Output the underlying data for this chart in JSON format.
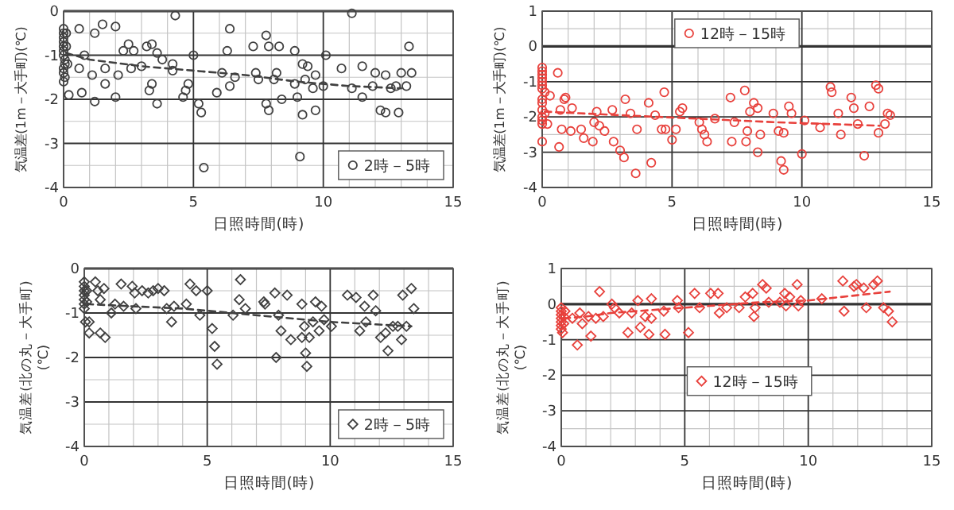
{
  "chart_data": [
    {
      "type": "scatter",
      "xlabel": "日照時間(時)",
      "ylabel": "気温差(1m－大手町)(℃)",
      "xlim": [
        0,
        15
      ],
      "xticks": [
        0,
        5,
        10,
        15
      ],
      "ylim": [
        -4,
        0
      ],
      "yticks": [
        -4,
        -3,
        -2,
        -1,
        0
      ],
      "grid": true,
      "legend": "bottom right",
      "series": [
        {
          "name": "2時－5時",
          "color": "#404040",
          "marker": "circle",
          "x": [
            0,
            0,
            0,
            0,
            0,
            0,
            0,
            0.05,
            0.05,
            0,
            0,
            0.05,
            0,
            0.1,
            0.1,
            0.15,
            0.2,
            0.6,
            0.6,
            0.7,
            0.8,
            1.1,
            1.2,
            1.2,
            1.5,
            1.6,
            1.6,
            2.0,
            2.0,
            2.1,
            2.3,
            2.5,
            2.6,
            2.7,
            3.0,
            3.2,
            3.3,
            3.4,
            3.4,
            3.6,
            3.6,
            3.8,
            4.3,
            4.2,
            4.2,
            4.6,
            4.7,
            4.8,
            5.0,
            5.2,
            5.3,
            5.4,
            5.9,
            6.1,
            6.3,
            6.4,
            6.4,
            6.6,
            7.3,
            7.4,
            7.5,
            7.8,
            7.9,
            7.8,
            7.9,
            8.1,
            8.2,
            8.3,
            8.4,
            8.9,
            8.9,
            9.0,
            9.1,
            9.2,
            9.2,
            9.3,
            9.4,
            9.6,
            9.7,
            9.7,
            10.0,
            10.1,
            10.7,
            11.1,
            11.1,
            11.5,
            11.5,
            11.9,
            12.0,
            12.2,
            12.4,
            12.4,
            12.6,
            12.8,
            12.9,
            13.0,
            13.2,
            13.3,
            13.4
          ],
          "values": [
            -0.4,
            -0.5,
            -0.6,
            -0.7,
            -0.8,
            -0.9,
            -1.0,
            -1.1,
            -1.2,
            -1.3,
            -1.4,
            -1.5,
            -1.6,
            -0.5,
            -0.8,
            -1.2,
            -1.9,
            -0.4,
            -1.3,
            -1.85,
            -1.0,
            -1.45,
            -2.05,
            -0.5,
            -0.3,
            -1.65,
            -1.3,
            -0.35,
            -1.95,
            -1.45,
            -0.9,
            -0.75,
            -1.3,
            -0.9,
            -1.25,
            -0.8,
            -1.8,
            -0.75,
            -1.65,
            -0.95,
            -2.1,
            -1.1,
            -0.1,
            -1.2,
            -1.35,
            -1.95,
            -1.8,
            -1.65,
            -1.0,
            -2.1,
            -2.3,
            -3.55,
            -1.85,
            -1.4,
            -0.9,
            -0.4,
            -1.7,
            -1.5,
            -0.8,
            -1.4,
            -1.55,
            -0.55,
            -0.8,
            -2.1,
            -2.25,
            -1.55,
            -1.4,
            -0.8,
            -2.0,
            -0.9,
            -1.65,
            -1.95,
            -3.3,
            -2.35,
            -1.2,
            -1.55,
            -1.25,
            -1.75,
            -1.45,
            -2.25,
            -1.7,
            -1.0,
            -1.3,
            -0.05,
            -1.75,
            -1.25,
            -1.95,
            -1.7,
            -1.4,
            -2.25,
            -1.45,
            -2.3,
            -1.75,
            -1.7,
            -2.3,
            -1.4,
            -1.7,
            -0.8,
            -1.4
          ]
        },
        {
          "type": "line",
          "line_style": "dashed",
          "color": "#404040",
          "x": [
            0.1,
            1,
            3,
            5,
            7,
            9,
            11,
            13
          ],
          "values": [
            -0.95,
            -1.1,
            -1.25,
            -1.35,
            -1.45,
            -1.6,
            -1.7,
            -1.75
          ]
        }
      ]
    },
    {
      "type": "scatter",
      "xlabel": "日照時間(時)",
      "ylabel": "気温差(1m－大手町)(℃)",
      "xlim": [
        0,
        15
      ],
      "xticks": [
        0,
        5,
        10,
        15
      ],
      "ylim": [
        -4,
        1
      ],
      "yticks": [
        -4,
        -3,
        -2,
        -1,
        0,
        1
      ],
      "grid": true,
      "legend": "top",
      "series": [
        {
          "name": "12時－15時",
          "color": "#e8413c",
          "marker": "circle",
          "x": [
            0,
            0,
            0,
            0,
            0,
            0,
            0,
            0,
            0,
            0,
            0,
            0,
            0,
            0,
            0.1,
            0.1,
            0.2,
            0.3,
            0.6,
            0.65,
            0.7,
            0.75,
            0.85,
            0.9,
            1.15,
            1.1,
            1.5,
            1.6,
            1.95,
            2.0,
            2.1,
            2.2,
            2.4,
            2.7,
            2.75,
            3.0,
            3.15,
            3.2,
            3.4,
            3.6,
            3.65,
            4.1,
            4.2,
            4.35,
            4.6,
            4.7,
            4.75,
            5.0,
            5.15,
            5.3,
            5.4,
            6.05,
            6.15,
            6.25,
            6.35,
            6.65,
            7.25,
            7.3,
            7.4,
            7.8,
            7.85,
            7.9,
            8.0,
            8.15,
            8.3,
            8.3,
            8.4,
            8.9,
            9.1,
            9.2,
            9.3,
            9.3,
            9.5,
            9.6,
            10.0,
            10.1,
            10.7,
            11.1,
            11.15,
            11.4,
            11.5,
            11.9,
            12.0,
            12.15,
            12.4,
            12.6,
            12.85,
            12.95,
            12.95,
            13.2,
            13.3,
            13.4
          ],
          "values": [
            -0.6,
            -0.7,
            -0.8,
            -0.9,
            -1.0,
            -1.1,
            -1.2,
            -1.5,
            -1.6,
            -1.8,
            -2.0,
            -2.1,
            -2.2,
            -2.7,
            -1.3,
            -1.9,
            -2.2,
            -1.4,
            -0.75,
            -2.85,
            -1.8,
            -2.35,
            -1.5,
            -1.45,
            -1.75,
            -2.4,
            -2.35,
            -2.6,
            -2.7,
            -2.15,
            -1.85,
            -2.25,
            -2.4,
            -1.8,
            -2.7,
            -2.95,
            -3.15,
            -1.5,
            -1.9,
            -3.6,
            -2.35,
            -1.6,
            -3.3,
            -1.95,
            -2.35,
            -1.3,
            -2.35,
            -2.65,
            -2.35,
            -1.85,
            -1.75,
            -2.15,
            -2.35,
            -2.5,
            -2.7,
            -2.05,
            -1.45,
            -2.7,
            -2.15,
            -1.25,
            -2.7,
            -2.4,
            -1.85,
            -1.6,
            -1.75,
            -3.0,
            -2.5,
            -1.9,
            -2.4,
            -3.25,
            -3.5,
            -2.45,
            -1.7,
            -1.9,
            -3.05,
            -2.1,
            -2.3,
            -1.15,
            -1.3,
            -1.9,
            -2.5,
            -1.45,
            -1.75,
            -2.2,
            -3.1,
            -1.7,
            -1.1,
            -1.2,
            -2.45,
            -2.2,
            -1.9,
            -1.95
          ]
        },
        {
          "type": "line",
          "line_style": "dashed",
          "color": "#e8413c",
          "x": [
            0.1,
            3,
            6,
            9,
            13
          ],
          "values": [
            -1.85,
            -1.95,
            -2.05,
            -2.15,
            -2.25
          ]
        }
      ]
    },
    {
      "type": "scatter",
      "xlabel": "日照時間(時)",
      "ylabel": "気温差(北の丸－大手町)(℃)",
      "xlim": [
        0,
        15
      ],
      "xticks": [
        0,
        5,
        10,
        15
      ],
      "ylim": [
        -4,
        0
      ],
      "yticks": [
        -4,
        -3,
        -2,
        -1,
        0
      ],
      "grid": true,
      "legend": "bottom right",
      "series": [
        {
          "name": "2時－5時",
          "color": "#404040",
          "marker": "diamond",
          "x": [
            0,
            0,
            0,
            0,
            0,
            0,
            0,
            0.05,
            0.1,
            0.1,
            0.2,
            0.2,
            0.45,
            0.55,
            0.65,
            0.65,
            0.85,
            0.8,
            1.1,
            1.25,
            1.5,
            1.6,
            1.95,
            2.05,
            2.1,
            2.35,
            2.6,
            2.8,
            3.0,
            3.25,
            3.35,
            3.55,
            3.65,
            4.15,
            4.3,
            4.55,
            4.7,
            5.0,
            5.2,
            5.3,
            5.4,
            6.05,
            6.3,
            6.35,
            6.55,
            7.3,
            7.35,
            7.75,
            7.8,
            7.9,
            8.0,
            8.25,
            8.4,
            8.85,
            8.85,
            8.95,
            9.0,
            9.05,
            9.15,
            9.3,
            9.4,
            9.55,
            9.65,
            9.75,
            10.05,
            10.7,
            11.05,
            11.2,
            11.4,
            11.45,
            11.75,
            11.85,
            12.05,
            12.25,
            12.35,
            12.55,
            12.75,
            12.9,
            12.95,
            13.1,
            13.3,
            13.4
          ],
          "values": [
            -0.3,
            -0.4,
            -0.5,
            -0.6,
            -0.7,
            -0.8,
            -0.9,
            -1.2,
            -0.5,
            -0.75,
            -1.2,
            -1.45,
            -0.3,
            -0.5,
            -1.45,
            -0.7,
            -1.55,
            -0.45,
            -1.0,
            -0.8,
            -0.35,
            -0.85,
            -0.4,
            -0.55,
            -0.9,
            -0.5,
            -0.55,
            -0.5,
            -0.45,
            -0.5,
            -0.9,
            -1.2,
            -0.85,
            -0.8,
            -0.35,
            -0.5,
            -1.05,
            -0.5,
            -1.35,
            -1.75,
            -2.15,
            -1.05,
            -0.7,
            -0.25,
            -0.9,
            -0.75,
            -0.8,
            -0.55,
            -2.0,
            -1.05,
            -1.4,
            -0.6,
            -1.6,
            -0.8,
            -1.55,
            -1.3,
            -1.9,
            -2.2,
            -1.55,
            -1.2,
            -0.75,
            -1.4,
            -0.85,
            -1.15,
            -1.3,
            -0.6,
            -0.65,
            -1.4,
            -0.85,
            -1.2,
            -0.6,
            -0.95,
            -1.55,
            -1.45,
            -1.85,
            -1.3,
            -1.3,
            -1.6,
            -0.6,
            -1.3,
            -0.45,
            -0.9
          ]
        },
        {
          "type": "line",
          "line_style": "dashed",
          "color": "#404040",
          "x": [
            0.1,
            2,
            4,
            6,
            8,
            10,
            13.3
          ],
          "values": [
            -0.8,
            -0.85,
            -0.9,
            -1.0,
            -1.1,
            -1.2,
            -1.3
          ]
        }
      ]
    },
    {
      "type": "scatter",
      "xlabel": "日照時間(時)",
      "ylabel": "気温差(北の丸－大手町)(℃)",
      "xlim": [
        0,
        15
      ],
      "xticks": [
        0,
        5,
        10,
        15
      ],
      "ylim": [
        -4,
        1
      ],
      "yticks": [
        -4,
        -3,
        -2,
        -1,
        0,
        1
      ],
      "grid": true,
      "legend": "bottom",
      "series": [
        {
          "name": "12時－15時",
          "color": "#e8413c",
          "marker": "diamond",
          "x": [
            0,
            0,
            0,
            0,
            0,
            0,
            0,
            0.05,
            0.1,
            0.1,
            0.15,
            0.45,
            0.65,
            0.75,
            0.85,
            1.1,
            1.2,
            1.4,
            1.55,
            1.7,
            2.05,
            2.15,
            2.35,
            2.7,
            2.85,
            3.1,
            3.2,
            3.4,
            3.55,
            3.65,
            3.65,
            4.15,
            4.2,
            4.7,
            4.75,
            5.15,
            5.4,
            5.6,
            6.05,
            6.35,
            6.4,
            6.7,
            7.2,
            7.45,
            7.75,
            7.8,
            7.85,
            8.15,
            8.3,
            8.4,
            8.85,
            9.05,
            9.1,
            9.25,
            9.55,
            9.6,
            9.7,
            10.55,
            11.4,
            11.45,
            11.85,
            11.95,
            12.25,
            12.35,
            12.65,
            12.8,
            13.05,
            13.25,
            13.4
          ],
          "values": [
            -0.1,
            -0.2,
            -0.3,
            -0.4,
            -0.5,
            -0.6,
            -0.7,
            -0.8,
            -0.35,
            -0.55,
            -0.2,
            -0.4,
            -1.15,
            -0.25,
            -0.55,
            -0.35,
            -0.9,
            -0.4,
            0.35,
            -0.35,
            0.0,
            -0.1,
            -0.25,
            -0.8,
            -0.25,
            0.1,
            -0.65,
            -0.35,
            -0.85,
            0.15,
            -0.4,
            -0.2,
            -0.85,
            0.1,
            -0.1,
            -0.8,
            0.3,
            -0.1,
            0.3,
            0.3,
            -0.25,
            -0.1,
            -0.1,
            0.2,
            0.3,
            -0.35,
            -0.1,
            0.55,
            0.45,
            0.05,
            0.05,
            0.3,
            -0.05,
            0.2,
            0.55,
            -0.05,
            0.1,
            0.15,
            0.65,
            -0.2,
            0.5,
            0.55,
            0.45,
            -0.1,
            0.55,
            0.65,
            -0.1,
            -0.2,
            -0.5
          ]
        },
        {
          "type": "line",
          "line_style": "dashed",
          "color": "#e8413c",
          "x": [
            0.1,
            1,
            2,
            4,
            6,
            8,
            10,
            12,
            13.3
          ],
          "values": [
            -0.4,
            -0.35,
            -0.25,
            -0.15,
            -0.05,
            0.05,
            0.1,
            0.25,
            0.35
          ]
        }
      ]
    }
  ]
}
